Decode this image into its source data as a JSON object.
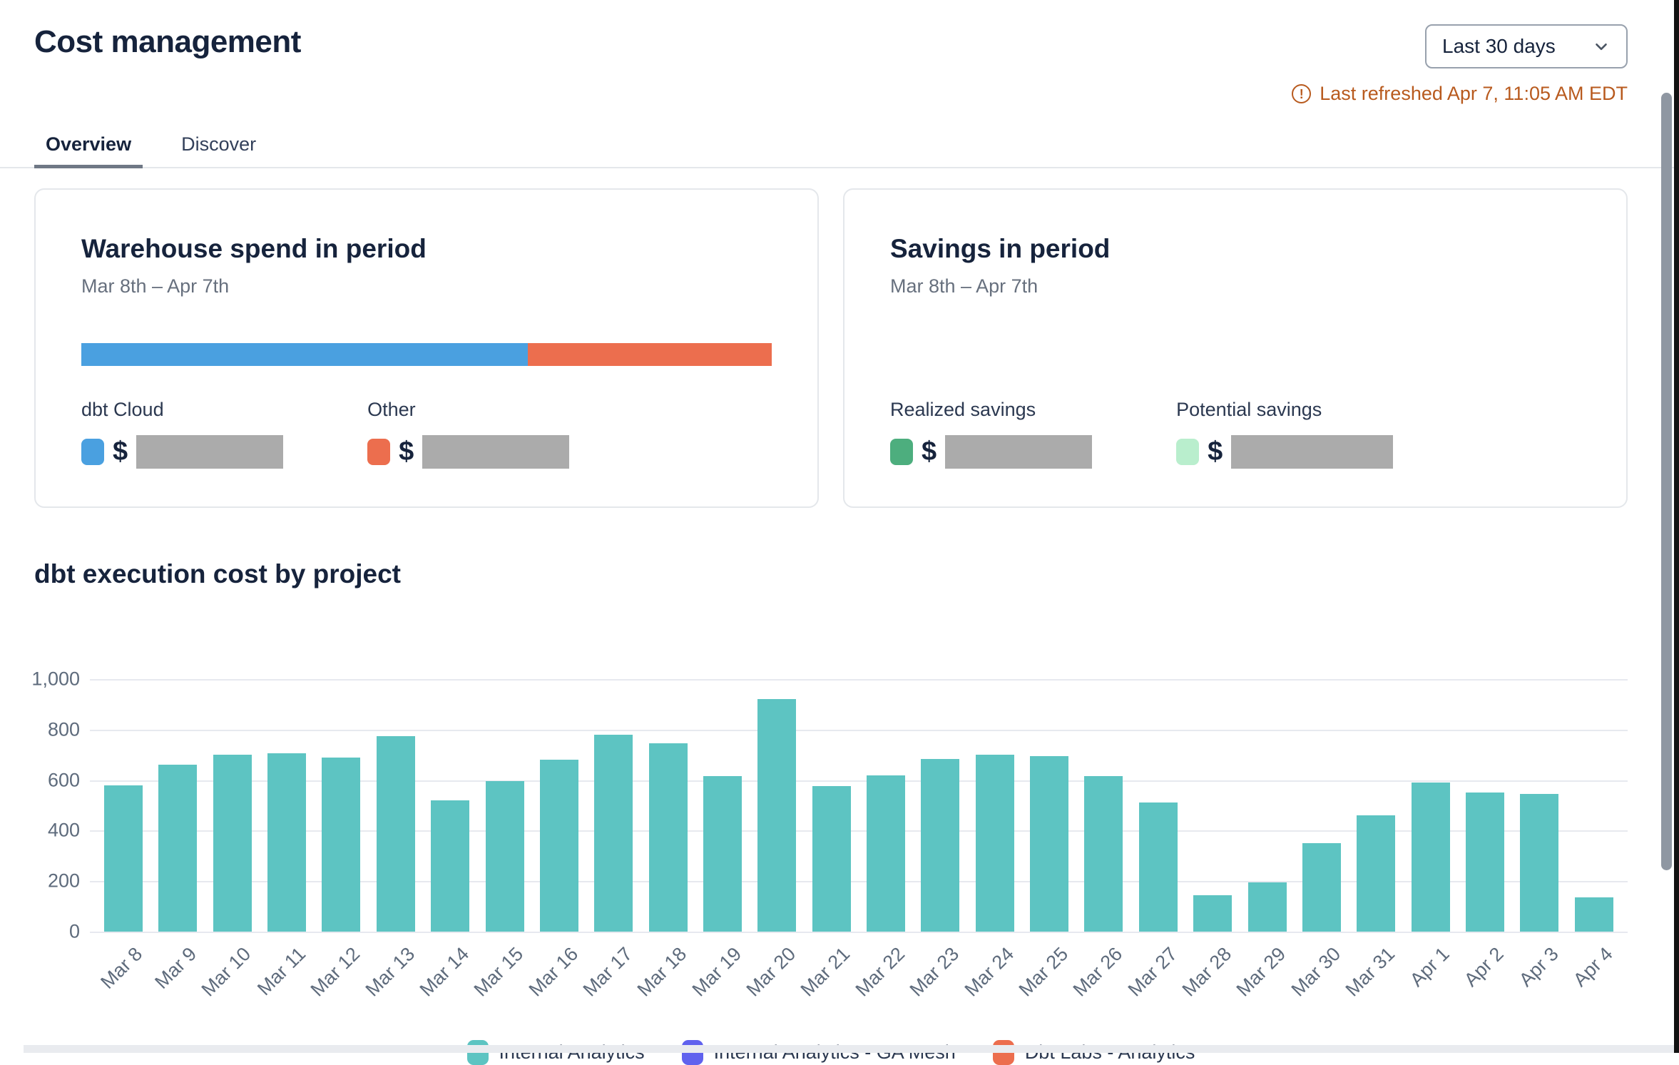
{
  "header": {
    "title": "Cost management",
    "date_range_selector": "Last 30 days",
    "last_refreshed": "Last refreshed Apr 7, 11:05 AM EDT"
  },
  "tabs": [
    {
      "label": "Overview",
      "active": true
    },
    {
      "label": "Discover",
      "active": false
    }
  ],
  "cards": {
    "warehouse": {
      "title": "Warehouse spend in period",
      "subtitle": "Mar 8th – Apr 7th",
      "bar": {
        "dbt_cloud_width": "64.7%",
        "other_width": "35.3%",
        "dbt_cloud_color": "#4AA0E0",
        "other_color": "#EC6E4E"
      },
      "legend": [
        {
          "label": "dbt Cloud",
          "color": "#4AA0E0",
          "value_prefix": "$",
          "value_redacted": true
        },
        {
          "label": "Other",
          "color": "#EC6E4E",
          "value_prefix": "$",
          "value_redacted": true
        }
      ]
    },
    "savings": {
      "title": "Savings in period",
      "subtitle": "Mar 8th – Apr 7th",
      "legend": [
        {
          "label": "Realized savings",
          "color": "#4DAE7E",
          "value_prefix": "$",
          "value_redacted": true
        },
        {
          "label": "Potential savings",
          "color": "#B9EECD",
          "value_prefix": "$",
          "value_redacted": true
        }
      ]
    }
  },
  "chart_section": {
    "title": "dbt execution cost by project"
  },
  "chart_data": {
    "type": "bar",
    "title": "dbt execution cost by project",
    "categories": [
      "Mar 8",
      "Mar 9",
      "Mar 10",
      "Mar 11",
      "Mar 12",
      "Mar 13",
      "Mar 14",
      "Mar 15",
      "Mar 16",
      "Mar 17",
      "Mar 18",
      "Mar 19",
      "Mar 20",
      "Mar 21",
      "Mar 22",
      "Mar 23",
      "Mar 24",
      "Mar 25",
      "Mar 26",
      "Mar 27",
      "Mar 28",
      "Mar 29",
      "Mar 30",
      "Mar 31",
      "Apr 1",
      "Apr 2",
      "Apr 3",
      "Apr 4"
    ],
    "series": [
      {
        "name": "Internal Analytics",
        "color": "#5DC4C2",
        "values": [
          580,
          660,
          700,
          705,
          690,
          775,
          520,
          595,
          680,
          780,
          745,
          615,
          920,
          575,
          620,
          685,
          700,
          695,
          615,
          510,
          145,
          195,
          350,
          460,
          590,
          550,
          545,
          135
        ]
      }
    ],
    "legend_items": [
      {
        "label": "Internal Analytics",
        "color": "#5DC4C2"
      },
      {
        "label": "Internal Analytics - GA Mesh",
        "color": "#6062EE"
      },
      {
        "label": "Dbt Labs - Analytics",
        "color": "#EC6E4E"
      }
    ],
    "xlabel": "",
    "ylabel": "",
    "ylim": [
      0,
      1000
    ],
    "yticks": [
      {
        "label": "1,000",
        "value": 1000
      },
      {
        "label": "800",
        "value": 800
      },
      {
        "label": "600",
        "value": 600
      },
      {
        "label": "400",
        "value": 400
      },
      {
        "label": "200",
        "value": 200
      },
      {
        "label": "0",
        "value": 0
      }
    ],
    "grid": true,
    "legend_position": "bottom",
    "x_tick_rotation": -45
  }
}
